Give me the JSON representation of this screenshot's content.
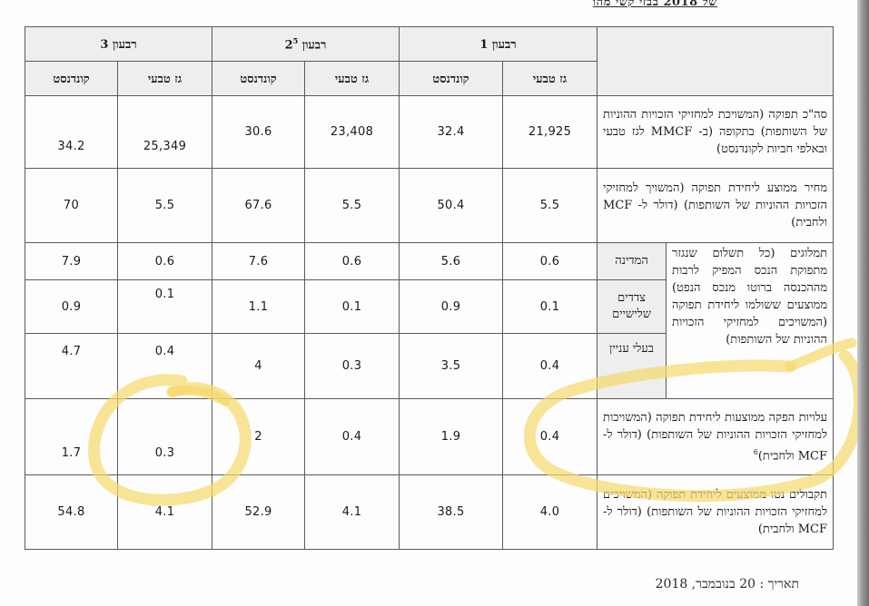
{
  "page_header_fragment": "של 2018 בבזי קשי מהו",
  "columns": {
    "q1": "רבעון 1",
    "q2": "רבעון 2",
    "q2_sup": "5",
    "q3": "רבעון 3",
    "gas": "גז טבעי",
    "condensate": "קונדנסט"
  },
  "rows": {
    "total_production": {
      "label": "סה\"כ תפוקה (המשויכת למחזיקי הזכויות ההוניות של השותפות) בתקופה (ב- MMCF לגז טבעי ובאלפי חביות לקונדנסט)",
      "q1_gas": "21,925",
      "q1_cond": "32.4",
      "q2_gas": "23,408",
      "q2_cond": "30.6",
      "q3_gas": "25,349",
      "q3_cond": "34.2"
    },
    "avg_price": {
      "label": "מחיר ממוצע ליחידת תפוקה (המשויך למחזיקי הזכויות ההוניות של השותפות) (דולר ל- MCF ולחבית)",
      "q1_gas": "5.5",
      "q1_cond": "50.4",
      "q2_gas": "5.5",
      "q2_cond": "67.6",
      "q3_gas": "5.5",
      "q3_cond": "70"
    },
    "royalties": {
      "label": "תמלוגים (כל תשלום שנגזר מתפוקת הנכס המפיק לרבות מההכנסה ברוטו מנכס הנפט) ממוצעים ששולמו ליחידת תפוקה (המשויכים למחזיקי הזכויות ההוניות של השותפות)",
      "state": {
        "label": "המדינה",
        "q1_gas": "0.6",
        "q1_cond": "5.6",
        "q2_gas": "0.6",
        "q2_cond": "7.6",
        "q3_gas": "0.6",
        "q3_cond": "7.9"
      },
      "third_parties": {
        "label": "צדדים שלישיים",
        "q1_gas": "0.1",
        "q1_cond": "0.9",
        "q2_gas": "0.1",
        "q2_cond": "1.1",
        "q3_gas": "0.1",
        "q3_cond": "0.9"
      },
      "interested_parties": {
        "label": "בעלי עניין",
        "q1_gas": "0.4",
        "q1_cond": "3.5",
        "q2_gas": "0.3",
        "q2_cond": "4",
        "q3_gas": "0.4",
        "q3_cond": "4.7"
      }
    },
    "production_costs": {
      "label": "עלויות הפקה ממוצעות ליחידת תפוקה (המשויכות למחזיקי הזכויות ההוניות של השותפות) (דולר ל- MCF ולחבית)",
      "label_sup": "6",
      "q1_gas": "0.4",
      "q1_cond": "1.9",
      "q2_gas": "0.4",
      "q2_cond": "2",
      "q3_gas": "0.3",
      "q3_cond": "1.7"
    },
    "net_receipts": {
      "label": "תקבולים נטו ממוצעים ליחידת תפוקה (המשויכים למחזיקי הזכויות ההוניות של השותפות) (דולר ל- MCF ולחבית)",
      "q1_gas": "4.0",
      "q1_cond": "38.5",
      "q2_gas": "4.1",
      "q2_cond": "52.9",
      "q3_gas": "4.1",
      "q3_cond": "54.8"
    }
  },
  "footer": {
    "date": "תאריך : 20 בנובמבר, 2018"
  },
  "highlight_color": "#f5d86a"
}
